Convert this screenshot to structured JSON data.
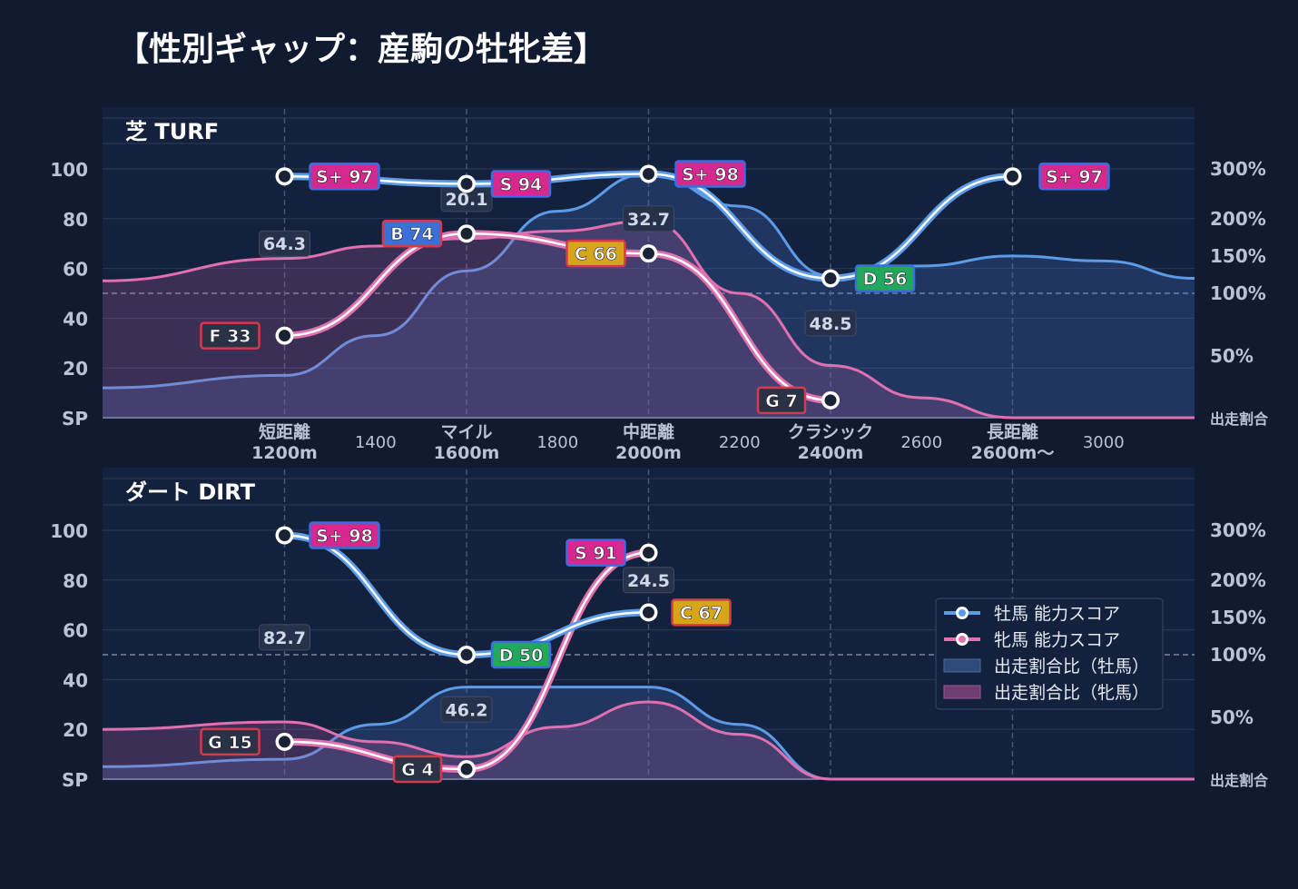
{
  "title": "【性別ギャップ：産駒の牡牝差】",
  "colors": {
    "background": "#101a30",
    "panel": "#14213d",
    "male": "#5b9be8",
    "female": "#e070b0",
    "text": "#e6ebf5",
    "muted": "#b8c2d8"
  },
  "chart_data": [
    {
      "type": "line",
      "panel_label": "芝 TURF",
      "x_categories": [
        "短距離\n1200m",
        "マイル\n1600m",
        "中距離\n2000m",
        "クラシック\n2400m",
        "長距離\n2600m〜"
      ],
      "x_minor_ticks": [
        "1400",
        "1800",
        "2200",
        "2600",
        "3000"
      ],
      "y_ticks": [
        "SP",
        "20",
        "40",
        "60",
        "80",
        "100"
      ],
      "y2_ticks": [
        "出走割合",
        "50%",
        "100%",
        "150%",
        "200%",
        "300%"
      ],
      "series": [
        {
          "name": "牡馬 能力スコア",
          "color": "#5b9be8",
          "x": [
            1200,
            1600,
            2000,
            2400,
            2800
          ],
          "values": [
            97,
            94,
            98,
            56,
            97
          ],
          "labels": [
            "S+ 97",
            "S 94",
            "S+ 98",
            "D 56",
            "S+ 97"
          ]
        },
        {
          "name": "牝馬 能力スコア",
          "color": "#e070b0",
          "x": [
            1200,
            1600,
            2000,
            2400
          ],
          "values": [
            33,
            74,
            66,
            7
          ],
          "labels": [
            "F 33",
            "B 74",
            "C 66",
            "G 7"
          ]
        }
      ],
      "gap_labels": [
        "64.3",
        "20.1",
        "32.7",
        "48.5"
      ],
      "area_male": {
        "name": "出走割合比（牡馬）",
        "x": [
          800,
          1200,
          1400,
          1600,
          1800,
          2000,
          2200,
          2400,
          2600,
          2800,
          3000,
          3200
        ],
        "values": [
          12,
          17,
          33,
          59,
          83,
          98,
          85,
          57,
          61,
          65,
          63,
          56
        ]
      },
      "area_female": {
        "name": "出走割合比（牝馬）",
        "x": [
          800,
          1200,
          1400,
          1600,
          1800,
          2000,
          2200,
          2400,
          2600,
          2800,
          3000,
          3200
        ],
        "values": [
          55,
          64,
          69,
          72,
          75,
          79,
          50,
          21,
          8,
          0,
          0,
          0
        ]
      }
    },
    {
      "type": "line",
      "panel_label": "ダート DIRT",
      "x_categories": [],
      "y_ticks": [
        "SP",
        "20",
        "40",
        "60",
        "80",
        "100"
      ],
      "y2_ticks": [
        "出走割合",
        "50%",
        "100%",
        "150%",
        "200%",
        "300%"
      ],
      "series": [
        {
          "name": "牡馬 能力スコア",
          "color": "#5b9be8",
          "x": [
            1200,
            1600,
            2000
          ],
          "values": [
            98,
            50,
            67
          ],
          "labels": [
            "S+ 98",
            "D 50",
            "C 67"
          ]
        },
        {
          "name": "牝馬 能力スコア",
          "color": "#e070b0",
          "x": [
            1200,
            1600,
            2000
          ],
          "values": [
            15,
            4,
            91
          ],
          "labels": [
            "G 15",
            "G 4",
            "S 91"
          ]
        }
      ],
      "gap_labels": [
        "82.7",
        "46.2",
        "24.5"
      ],
      "area_male": {
        "name": "出走割合比（牡馬）",
        "x": [
          800,
          1200,
          1400,
          1600,
          1800,
          2000,
          2200,
          2400,
          2600,
          2800,
          3000,
          3200
        ],
        "values": [
          5,
          8,
          22,
          37,
          37,
          37,
          22,
          0,
          0,
          0,
          0,
          0
        ]
      },
      "area_female": {
        "name": "出走割合比（牝馬）",
        "x": [
          800,
          1200,
          1400,
          1600,
          1800,
          2000,
          2200,
          2400,
          2600,
          2800,
          3000,
          3200
        ],
        "values": [
          20,
          23,
          15,
          9,
          21,
          31,
          18,
          0,
          0,
          0,
          0,
          0
        ]
      }
    }
  ],
  "legend": {
    "items": [
      "牡馬 能力スコア",
      "牝馬 能力スコア",
      "出走割合比（牡馬）",
      "出走割合比（牝馬）"
    ],
    "placement": "right"
  }
}
